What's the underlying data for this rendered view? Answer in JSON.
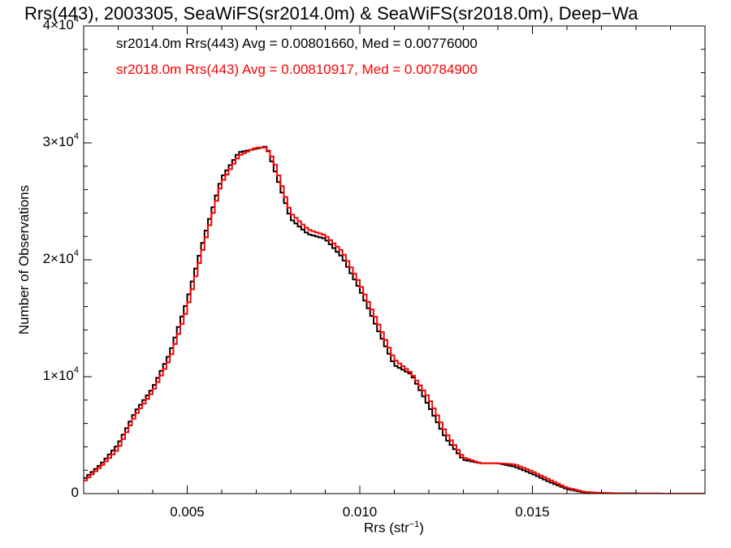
{
  "chart_data": {
    "type": "line",
    "style": "step-histogram",
    "title": "Rrs(443), 2003305, SeaWiFS(sr2014.0m) & SeaWiFS(sr2018.0m), Deep−Wa",
    "xlabel_main": "Rrs (str",
    "xlabel_exp": "−1",
    "xlabel_end": ")",
    "ylabel": "Number of Observations",
    "xlim": [
      0.002,
      0.02
    ],
    "ylim": [
      0,
      40000
    ],
    "xticks": [
      {
        "value": 0.005,
        "label": "0.005"
      },
      {
        "value": 0.01,
        "label": "0.010"
      },
      {
        "value": 0.015,
        "label": "0.015"
      }
    ],
    "yticks": [
      {
        "value": 0,
        "mantissa": "0",
        "exp": ""
      },
      {
        "value": 10000,
        "mantissa": "1×10",
        "exp": "4"
      },
      {
        "value": 20000,
        "mantissa": "2×10",
        "exp": "4"
      },
      {
        "value": 30000,
        "mantissa": "3×10",
        "exp": "4"
      },
      {
        "value": 40000,
        "mantissa": "4×10",
        "exp": "4"
      }
    ],
    "x": [
      0.002,
      0.0025,
      0.003,
      0.0035,
      0.004,
      0.0045,
      0.005,
      0.0055,
      0.006,
      0.0065,
      0.007,
      0.0073,
      0.0075,
      0.008,
      0.0085,
      0.009,
      0.0095,
      0.01,
      0.0105,
      0.011,
      0.0115,
      0.012,
      0.0125,
      0.013,
      0.0135,
      0.014,
      0.0145,
      0.015,
      0.0155,
      0.016,
      0.0165,
      0.017,
      0.0175,
      0.018,
      0.019,
      0.02
    ],
    "series": [
      {
        "name": "sr2014.0m",
        "color": "#000000",
        "values": [
          1200,
          2500,
          4200,
          7000,
          9000,
          12000,
          16500,
          22000,
          27000,
          29200,
          29500,
          29700,
          28000,
          23500,
          22200,
          21800,
          20200,
          17500,
          14200,
          11000,
          10200,
          7500,
          4700,
          2900,
          2600,
          2600,
          2300,
          1700,
          1000,
          400,
          100,
          50,
          20,
          10,
          0,
          0
        ]
      },
      {
        "name": "sr2018.0m",
        "color": "#ff0000",
        "values": [
          1000,
          2300,
          3800,
          6700,
          8700,
          11500,
          15800,
          21400,
          26600,
          28900,
          29600,
          29600,
          28600,
          24000,
          22600,
          22100,
          20700,
          18000,
          14800,
          11500,
          10300,
          8200,
          5200,
          3100,
          2600,
          2600,
          2500,
          1900,
          1200,
          500,
          150,
          60,
          25,
          10,
          0,
          0
        ]
      }
    ],
    "legend": [
      {
        "text": "sr2014.0m Rrs(443) Avg = 0.00801660, Med = 0.00776000",
        "color": "#000000"
      },
      {
        "text": "sr2018.0m Rrs(443) Avg = 0.00810917, Med = 0.00784900",
        "color": "#ff0000"
      }
    ],
    "legend_position": "top-left",
    "grid": false
  }
}
